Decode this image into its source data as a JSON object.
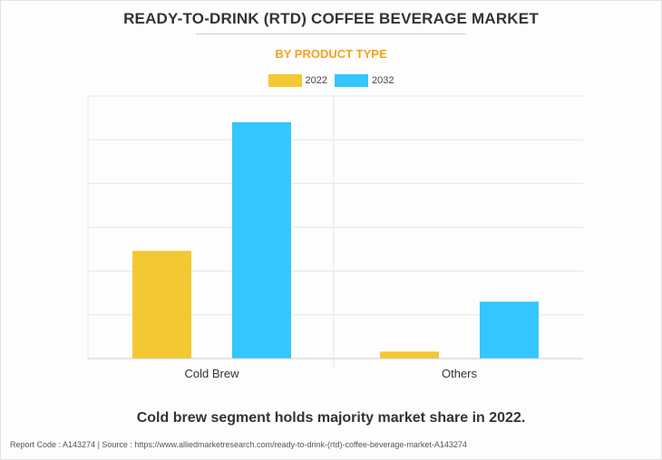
{
  "title": "READY-TO-DRINK (RTD) COFFEE BEVERAGE MARKET",
  "subtitle": "BY PRODUCT TYPE",
  "footer_text": "Cold brew segment holds majority market share in 2022.",
  "report_line": "Report Code : A143274  |  Source : https://www.alliedmarketresearch.com/ready-to-drink-(rtd)-coffee-beverage-market-A143274",
  "colors": {
    "subtitle": "#f5a21c",
    "series_2022": "#f4c832",
    "series_2032": "#33c6ff",
    "grid": "#e6e6e6",
    "axis": "#cccccc"
  },
  "chart_data": {
    "type": "bar",
    "categories": [
      "Cold Brew",
      "Others"
    ],
    "series": [
      {
        "name": "2022",
        "values": [
          2.46,
          0.16
        ]
      },
      {
        "name": "2032",
        "values": [
          5.4,
          1.3
        ]
      }
    ],
    "ylim": [
      0,
      6
    ],
    "grid": true,
    "legend": "top-center"
  }
}
